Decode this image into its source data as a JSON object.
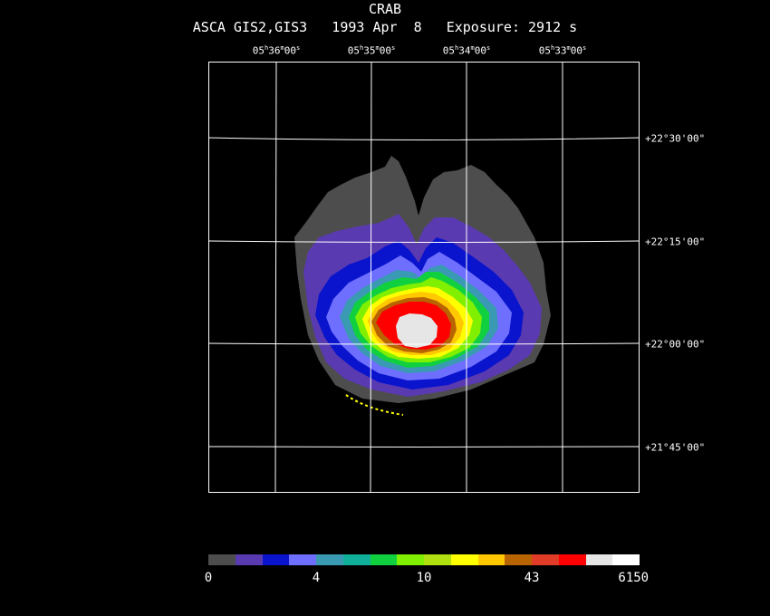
{
  "title": "CRAB",
  "subtitle": "ASCA GIS2,GIS3   1993 Apr  8   Exposure: 2912 s",
  "ra_labels": [
    {
      "h": "05",
      "m": "36",
      "s": "00"
    },
    {
      "h": "05",
      "m": "35",
      "s": "00"
    },
    {
      "h": "05",
      "m": "34",
      "s": "00"
    },
    {
      "h": "05",
      "m": "33",
      "s": "00"
    }
  ],
  "dec_labels": [
    "+22°30'00\"",
    "+22°15'00\"",
    "+22°00'00\"",
    "+21°45'00\""
  ],
  "colorbar": {
    "colors": [
      "#4d4d4d",
      "#5a3ab0",
      "#0a14cc",
      "#6e6eff",
      "#3a9ab4",
      "#10b09a",
      "#10d040",
      "#80f000",
      "#b0e010",
      "#ffff00",
      "#ffc800",
      "#b86400",
      "#e03c28",
      "#ff0000",
      "#e6e6e6",
      "#ffffff"
    ],
    "labels": [
      "0",
      "4",
      "10",
      "43",
      "6150"
    ]
  }
}
